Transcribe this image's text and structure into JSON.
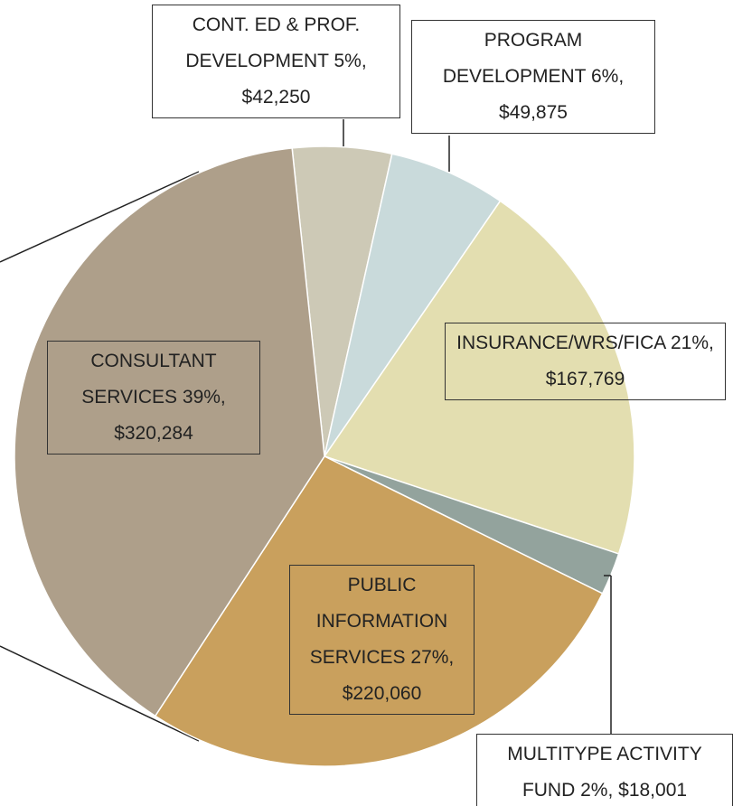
{
  "chart_data": {
    "type": "pie",
    "categories": [
      "CONT. ED & PROF. DEVELOPMENT",
      "PROGRAM DEVELOPMENT",
      "INSURANCE/WRS/FICA",
      "MULTITYPE ACTIVITY FUND",
      "PUBLIC INFORMATION SERVICES",
      "CONSULTANT SERVICES"
    ],
    "values": [
      42250,
      49875,
      167769,
      18001,
      220060,
      320284
    ],
    "value_labels": [
      "$42,250",
      "$49,875",
      "$167,769",
      "$18,001",
      "$220,060",
      "$320,284"
    ],
    "percent_labels": [
      "5%,",
      "6%,",
      "21%,",
      "2%,",
      "27%,",
      "39%,"
    ],
    "colors": [
      "#cdc9b6",
      "#c9dadb",
      "#e3deb0",
      "#93a39d",
      "#c9a05d",
      "#ae9f8a"
    ]
  }
}
